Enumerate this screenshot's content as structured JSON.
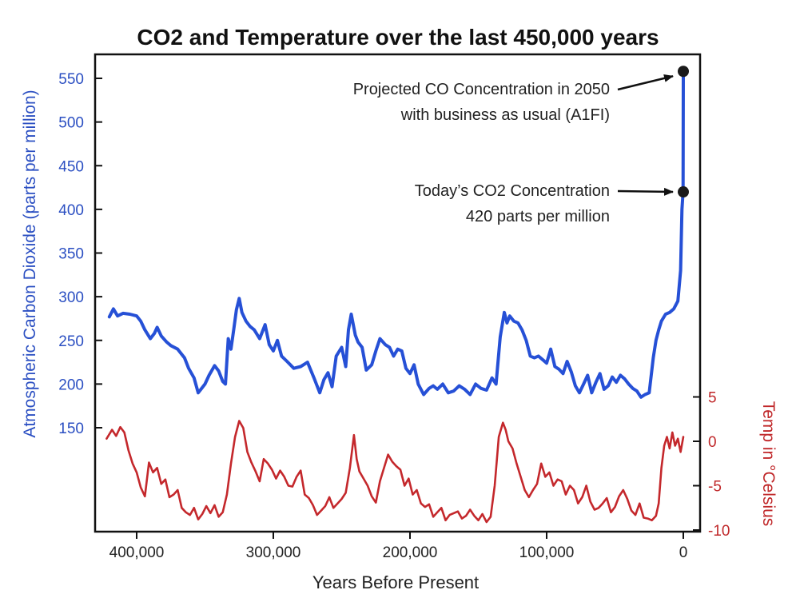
{
  "chart_data": {
    "type": "line",
    "title": "CO2 and Temperature over the last 450,000 years",
    "xlabel": "Years Before Present",
    "ylabel_left": "Atmospheric Carbon Dioxide (parts per million)",
    "ylabel_right": "Temp in °Celsius",
    "x_ticks": [
      400000,
      300000,
      200000,
      100000,
      0
    ],
    "x_tick_labels": [
      "400,000",
      "300,000",
      "200,000",
      "100,000",
      "0"
    ],
    "xlim": [
      430000,
      -5000
    ],
    "left_ticks": [
      150,
      200,
      250,
      300,
      350,
      400,
      450,
      500,
      550
    ],
    "left_tick_labels": [
      "150",
      "200",
      "250",
      "300",
      "350",
      "400",
      "450",
      "500",
      "550"
    ],
    "right_ticks": [
      5,
      0,
      -5,
      -10
    ],
    "right_tick_labels": [
      "5",
      "0",
      "-5",
      "-10"
    ],
    "colors": {
      "co2": "#2650d6",
      "temp": "#c4282c",
      "frame": "#111111"
    },
    "series": [
      {
        "key": "co2",
        "axis": "left",
        "x": [
          420000,
          417000,
          414000,
          410000,
          405000,
          400000,
          397000,
          394000,
          390000,
          387000,
          385000,
          382000,
          378000,
          375000,
          370000,
          365000,
          362000,
          358000,
          355000,
          350000,
          347000,
          343000,
          340000,
          337000,
          335000,
          333000,
          331000,
          329000,
          327000,
          325000,
          323000,
          320000,
          317000,
          314000,
          310000,
          306000,
          303000,
          300000,
          297000,
          294000,
          290000,
          285000,
          280000,
          275000,
          270000,
          266000,
          263000,
          260000,
          257000,
          254000,
          250000,
          247000,
          245000,
          243000,
          240000,
          238000,
          235000,
          232000,
          228000,
          225000,
          222000,
          218000,
          215000,
          212000,
          209000,
          206000,
          203000,
          200000,
          197000,
          194000,
          190000,
          186000,
          183000,
          180000,
          176000,
          172000,
          168000,
          164000,
          160000,
          156000,
          152000,
          148000,
          144000,
          140000,
          137000,
          134000,
          131000,
          129000,
          127000,
          124000,
          121000,
          118000,
          115000,
          112000,
          109000,
          106000,
          103000,
          100000,
          97000,
          94000,
          91000,
          88000,
          85000,
          82000,
          79000,
          76000,
          73000,
          70000,
          67000,
          64000,
          61000,
          58000,
          55000,
          52000,
          49000,
          46000,
          43000,
          40000,
          37000,
          34000,
          31000,
          28000,
          25000,
          22000,
          20000,
          18000,
          16000,
          13000,
          10000,
          7000,
          4000,
          2000,
          1000,
          200,
          0
        ],
        "y": [
          277,
          286,
          278,
          281,
          280,
          278,
          272,
          262,
          252,
          258,
          265,
          255,
          248,
          244,
          240,
          230,
          218,
          207,
          190,
          200,
          210,
          221,
          215,
          203,
          200,
          252,
          240,
          262,
          285,
          298,
          282,
          272,
          266,
          262,
          252,
          268,
          245,
          238,
          250,
          232,
          226,
          218,
          220,
          225,
          206,
          190,
          205,
          213,
          197,
          232,
          242,
          220,
          262,
          280,
          256,
          248,
          242,
          216,
          222,
          238,
          252,
          245,
          242,
          232,
          240,
          238,
          218,
          212,
          222,
          200,
          188,
          195,
          198,
          194,
          200,
          190,
          192,
          198,
          194,
          188,
          200,
          195,
          193,
          207,
          200,
          254,
          282,
          270,
          278,
          272,
          270,
          262,
          250,
          232,
          230,
          232,
          228,
          224,
          240,
          220,
          217,
          212,
          226,
          214,
          198,
          190,
          200,
          210,
          190,
          202,
          212,
          194,
          198,
          208,
          202,
          210,
          206,
          200,
          195,
          192,
          185,
          188,
          190,
          230,
          250,
          262,
          272,
          280,
          282,
          286,
          295,
          330,
          400,
          420,
          558
        ]
      },
      {
        "key": "temp",
        "axis": "right",
        "x": [
          422000,
          418000,
          415000,
          412000,
          409000,
          406000,
          403000,
          400000,
          397000,
          394000,
          391000,
          388000,
          385000,
          382000,
          379000,
          376000,
          373000,
          370000,
          367000,
          364000,
          361000,
          358000,
          355000,
          352000,
          349000,
          346000,
          343000,
          340000,
          337000,
          334000,
          331000,
          328000,
          325000,
          322000,
          319000,
          316000,
          313000,
          310000,
          307000,
          304000,
          301000,
          298000,
          295000,
          292000,
          289000,
          286000,
          283000,
          280000,
          277000,
          274000,
          271000,
          268000,
          265000,
          262000,
          259000,
          256000,
          253000,
          250000,
          247000,
          244000,
          241000,
          239000,
          237000,
          234000,
          231000,
          228000,
          225000,
          222000,
          219000,
          216000,
          213000,
          210000,
          207000,
          204000,
          201000,
          198000,
          195000,
          192000,
          189000,
          186000,
          183000,
          180000,
          177000,
          174000,
          171000,
          168000,
          165000,
          162000,
          159000,
          156000,
          153000,
          150000,
          147000,
          144000,
          141000,
          138000,
          135000,
          132000,
          130000,
          128000,
          125000,
          122000,
          119000,
          116000,
          113000,
          110000,
          107000,
          104000,
          101000,
          98000,
          95000,
          92000,
          89000,
          86000,
          83000,
          80000,
          77000,
          74000,
          71000,
          68000,
          65000,
          62000,
          59000,
          56000,
          53000,
          50000,
          47000,
          44000,
          41000,
          38000,
          35000,
          32000,
          29000,
          26000,
          23000,
          20000,
          18000,
          16000,
          14000,
          12000,
          10000,
          8000,
          6000,
          4000,
          2000,
          0
        ],
        "y": [
          0.3,
          1.3,
          0.6,
          1.6,
          1.0,
          -1.0,
          -2.5,
          -3.5,
          -5.2,
          -6.2,
          -2.4,
          -3.5,
          -3.0,
          -4.8,
          -4.3,
          -6.3,
          -6.0,
          -5.5,
          -7.5,
          -8.0,
          -8.3,
          -7.5,
          -8.8,
          -8.2,
          -7.3,
          -8.1,
          -7.2,
          -8.5,
          -8.0,
          -6.0,
          -2.5,
          0.5,
          2.3,
          1.5,
          -1.2,
          -2.4,
          -3.4,
          -4.5,
          -2.0,
          -2.5,
          -3.2,
          -4.2,
          -3.3,
          -4.0,
          -5.0,
          -5.1,
          -4.0,
          -3.3,
          -6.0,
          -6.4,
          -7.2,
          -8.3,
          -7.8,
          -7.3,
          -6.3,
          -7.5,
          -7.0,
          -6.5,
          -5.8,
          -3.0,
          0.7,
          -2.0,
          -3.4,
          -4.2,
          -5.0,
          -6.2,
          -6.9,
          -4.5,
          -3.0,
          -1.5,
          -2.3,
          -2.8,
          -3.2,
          -5.0,
          -4.2,
          -6.0,
          -5.5,
          -7.0,
          -7.4,
          -7.1,
          -8.5,
          -8.0,
          -7.5,
          -8.9,
          -8.3,
          -8.1,
          -7.9,
          -8.7,
          -8.4,
          -7.7,
          -8.4,
          -8.9,
          -8.2,
          -9.1,
          -8.5,
          -5.0,
          0.5,
          2.1,
          1.3,
          0.0,
          -0.8,
          -2.5,
          -4.0,
          -5.5,
          -6.3,
          -5.5,
          -4.8,
          -2.5,
          -4.0,
          -3.5,
          -5.0,
          -4.3,
          -4.5,
          -6.0,
          -5.0,
          -5.5,
          -7.0,
          -6.3,
          -5.0,
          -6.8,
          -7.7,
          -7.5,
          -7.0,
          -6.4,
          -8.0,
          -7.4,
          -6.2,
          -5.5,
          -6.5,
          -7.8,
          -8.3,
          -7.0,
          -8.6,
          -8.7,
          -8.9,
          -8.4,
          -7.0,
          -3.0,
          -0.5,
          0.5,
          -0.8,
          1.0,
          -0.5,
          0.3,
          -1.2,
          0.5
        ]
      }
    ],
    "annotations": [
      {
        "target_x": 0,
        "target_y": 558,
        "line1": "Projected CO Concentration in 2050",
        "line2": "with business as usual (A1FI)"
      },
      {
        "target_x": 0,
        "target_y": 420,
        "line1": "Today’s CO2 Concentration",
        "line2": "420 parts per million"
      }
    ]
  }
}
